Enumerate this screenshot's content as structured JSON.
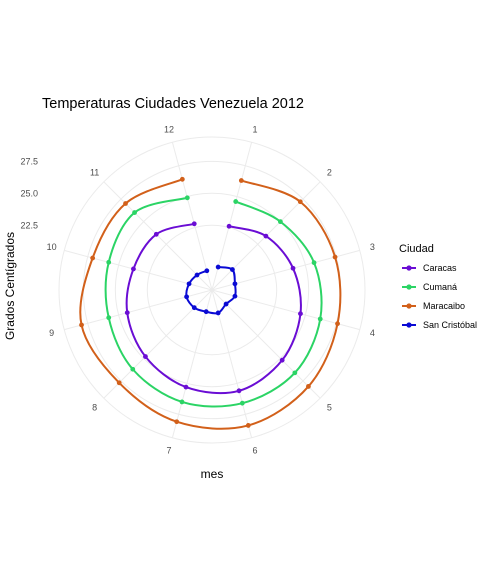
{
  "chart_data": {
    "type": "line",
    "coord": "polar",
    "title": "Temperaturas Ciudades Venezuela 2012",
    "xlabel": "mes",
    "ylabel": "Grados Centígrados",
    "categories": [
      "1",
      "2",
      "3",
      "4",
      "5",
      "6",
      "7",
      "8",
      "9",
      "10",
      "11",
      "12"
    ],
    "y_ticks": [
      "22.5",
      "25.0",
      "27.5"
    ],
    "ylim": [
      17.6,
      29.4
    ],
    "grid": true,
    "legend": {
      "title": "Ciudad",
      "position": "right"
    },
    "series": [
      {
        "name": "Caracas",
        "color": "#6a0dd4",
        "values": [
          22.6,
          23.4,
          24.0,
          24.6,
          25.2,
          25.6,
          25.3,
          24.8,
          24.3,
          23.8,
          23.6,
          22.8
        ]
      },
      {
        "name": "Cumaná",
        "color": "#2bd465",
        "values": [
          24.6,
          25.0,
          25.7,
          26.2,
          26.6,
          26.6,
          26.5,
          26.2,
          25.8,
          25.8,
          26.0,
          24.9
        ]
      },
      {
        "name": "Maracaibo",
        "color": "#d2601a",
        "values": [
          26.3,
          27.2,
          27.4,
          27.6,
          28.1,
          28.4,
          28.1,
          27.7,
          28.0,
          27.1,
          27.0,
          26.4
        ]
      },
      {
        "name": "San Cristóbal",
        "color": "#0a0ad4",
        "values": [
          19.3,
          19.7,
          19.3,
          19.3,
          19.0,
          19.3,
          19.2,
          19.4,
          19.5,
          19.3,
          19.1,
          19.0
        ]
      }
    ]
  }
}
